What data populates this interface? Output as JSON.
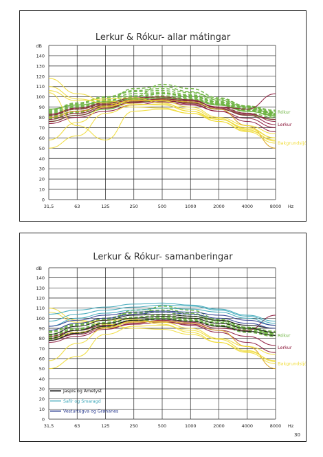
{
  "page": {
    "number": "30"
  },
  "colors": {
    "rokur": "#6cb33f",
    "lerkur": "#8b1538",
    "bakgrund": "#f0dc37",
    "bakgrund_line": "#d9a11c",
    "jaspis": "#111111",
    "safir": "#3aa6b9",
    "vestur": "#2a3b8f",
    "grid": "#222222"
  },
  "chart_data": [
    {
      "type": "line",
      "title": "Lerkur & Rókur- allar mátingar",
      "ylabel": "dB",
      "xlabel": "Hz",
      "categories": [
        "31,5",
        "63",
        "125",
        "250",
        "500",
        "1000",
        "2000",
        "4000",
        "8000"
      ],
      "yticks": [
        0,
        10,
        20,
        30,
        40,
        50,
        60,
        70,
        80,
        90,
        100,
        110,
        120,
        130,
        140
      ],
      "ylim": [
        0,
        150
      ],
      "grid": true,
      "series_labels": [
        {
          "text": "Rókur",
          "color": "rokur",
          "y": 85
        },
        {
          "text": "Lerkur",
          "color": "lerkur",
          "y": 73
        },
        {
          "text": "Bakgrundsljóð",
          "color": "bakgrund",
          "y": 55
        }
      ],
      "series": [
        {
          "group": "rokur",
          "style": "dash",
          "values": [
            82,
            88,
            93,
            98,
            100,
            98,
            93,
            88,
            84
          ]
        },
        {
          "group": "rokur",
          "style": "dash",
          "values": [
            80,
            86,
            91,
            97,
            99,
            97,
            92,
            86,
            82
          ]
        },
        {
          "group": "rokur",
          "style": "dash",
          "values": [
            84,
            90,
            96,
            101,
            103,
            100,
            95,
            89,
            85
          ]
        },
        {
          "group": "rokur",
          "style": "dash",
          "values": [
            78,
            84,
            90,
            95,
            97,
            95,
            90,
            84,
            80
          ]
        },
        {
          "group": "rokur",
          "style": "dash",
          "values": [
            86,
            93,
            99,
            105,
            106,
            102,
            96,
            90,
            86
          ]
        },
        {
          "group": "rokur",
          "style": "dash",
          "values": [
            83,
            89,
            95,
            108,
            110,
            105,
            97,
            90,
            85
          ]
        },
        {
          "group": "rokur",
          "style": "dash",
          "values": [
            81,
            88,
            94,
            100,
            112,
            108,
            99,
            91,
            83
          ]
        },
        {
          "group": "rokur",
          "style": "dash",
          "values": [
            85,
            91,
            97,
            103,
            104,
            101,
            94,
            87,
            81
          ]
        },
        {
          "group": "rokur",
          "style": "dash",
          "values": [
            79,
            85,
            92,
            98,
            101,
            99,
            93,
            87,
            83
          ]
        },
        {
          "group": "rokur",
          "style": "dash",
          "values": [
            87,
            94,
            100,
            106,
            108,
            104,
            98,
            91,
            87
          ]
        },
        {
          "group": "rokur",
          "style": "dash",
          "values": [
            82,
            88,
            94,
            99,
            103,
            101,
            95,
            88,
            84
          ]
        },
        {
          "group": "rokur",
          "style": "solid",
          "values": [
            76,
            82,
            88,
            95,
            96,
            94,
            88,
            82,
            78
          ]
        },
        {
          "group": "rokur",
          "style": "solid",
          "values": [
            88,
            92,
            95,
            98,
            99,
            97,
            92,
            86,
            82
          ]
        },
        {
          "group": "lerkur",
          "style": "solid",
          "values": [
            78,
            84,
            90,
            94,
            96,
            94,
            88,
            82,
            73
          ]
        },
        {
          "group": "lerkur",
          "style": "solid",
          "values": [
            80,
            86,
            92,
            96,
            98,
            96,
            90,
            84,
            76
          ]
        },
        {
          "group": "lerkur",
          "style": "solid",
          "values": [
            82,
            88,
            93,
            97,
            97,
            93,
            86,
            76,
            66
          ]
        },
        {
          "group": "lerkur",
          "style": "solid",
          "values": [
            74,
            80,
            86,
            92,
            95,
            92,
            86,
            79,
            70
          ]
        },
        {
          "group": "lerkur",
          "style": "solid",
          "values": [
            83,
            89,
            94,
            99,
            100,
            97,
            89,
            83,
            78
          ]
        },
        {
          "group": "lerkur",
          "style": "solid",
          "values": [
            76,
            82,
            89,
            95,
            98,
            96,
            90,
            88,
            103
          ]
        },
        {
          "group": "lerkur_dark",
          "style": "solid",
          "values": [
            80,
            86,
            91,
            96,
            97,
            95,
            88,
            72,
            50
          ]
        },
        {
          "group": "bakgrund",
          "style": "solid",
          "values": [
            118,
            103,
            96,
            93,
            92,
            86,
            78,
            70,
            60
          ]
        },
        {
          "group": "bakgrund",
          "style": "solid",
          "values": [
            110,
            98,
            94,
            90,
            89,
            84,
            76,
            67,
            58
          ]
        },
        {
          "group": "bakgrund",
          "style": "solid",
          "values": [
            58,
            75,
            90,
            97,
            96,
            90,
            80,
            72,
            64
          ]
        },
        {
          "group": "bakgrund",
          "style": "solid",
          "values": [
            50,
            62,
            84,
            92,
            93,
            88,
            79,
            68,
            57
          ]
        },
        {
          "group": "bakgrund",
          "style": "solid",
          "values": [
            104,
            72,
            58,
            86,
            88,
            84,
            78,
            69,
            60
          ]
        },
        {
          "group": "bakgrund",
          "style": "solid",
          "values": [
            106,
            96,
            98,
            99,
            94,
            86,
            76,
            66,
            55
          ]
        }
      ]
    },
    {
      "type": "line",
      "title": "Lerkur & Rókur- samanberingar",
      "ylabel": "dB",
      "xlabel": "Hz",
      "categories": [
        "31,5",
        "63",
        "125",
        "250",
        "500",
        "1000",
        "2000",
        "4000",
        "8000"
      ],
      "yticks": [
        0,
        10,
        20,
        30,
        40,
        50,
        60,
        70,
        80,
        90,
        100,
        110,
        120,
        130,
        140
      ],
      "ylim": [
        0,
        150
      ],
      "grid": true,
      "series_labels": [
        {
          "text": "Rókur",
          "color": "rokur",
          "y": 83
        },
        {
          "text": "Lerkur",
          "color": "lerkur",
          "y": 71
        },
        {
          "text": "Bakgrundsljóð",
          "color": "bakgrund",
          "y": 55
        }
      ],
      "legend": [
        {
          "text": "Jaspis og Ametyst",
          "color": "jaspis"
        },
        {
          "text": "Safír og Smaragd",
          "color": "safir"
        },
        {
          "text": "Vesturtúgva og Grønanes",
          "color": "vestur"
        }
      ],
      "series": [
        {
          "group": "rokur",
          "style": "dash",
          "values": [
            82,
            88,
            93,
            98,
            100,
            98,
            93,
            88,
            84
          ]
        },
        {
          "group": "rokur",
          "style": "dash",
          "values": [
            80,
            86,
            91,
            97,
            99,
            97,
            92,
            86,
            82
          ]
        },
        {
          "group": "rokur",
          "style": "dash",
          "values": [
            84,
            90,
            96,
            101,
            103,
            100,
            95,
            89,
            85
          ]
        },
        {
          "group": "rokur",
          "style": "dash",
          "values": [
            86,
            93,
            99,
            105,
            106,
            102,
            96,
            90,
            86
          ]
        },
        {
          "group": "rokur",
          "style": "dash",
          "values": [
            83,
            89,
            95,
            108,
            110,
            105,
            97,
            90,
            85
          ]
        },
        {
          "group": "rokur",
          "style": "dash",
          "values": [
            81,
            88,
            94,
            100,
            112,
            108,
            99,
            91,
            83
          ]
        },
        {
          "group": "rokur",
          "style": "dash",
          "values": [
            87,
            94,
            100,
            106,
            108,
            104,
            98,
            91,
            87
          ]
        },
        {
          "group": "rokur",
          "style": "dash",
          "values": [
            79,
            85,
            92,
            98,
            101,
            99,
            93,
            87,
            83
          ]
        },
        {
          "group": "lerkur",
          "style": "solid",
          "values": [
            78,
            84,
            90,
            94,
            96,
            94,
            88,
            82,
            73
          ]
        },
        {
          "group": "lerkur",
          "style": "solid",
          "values": [
            82,
            88,
            93,
            97,
            97,
            93,
            86,
            76,
            66
          ]
        },
        {
          "group": "lerkur",
          "style": "solid",
          "values": [
            76,
            82,
            89,
            95,
            98,
            96,
            90,
            88,
            103
          ]
        },
        {
          "group": "lerkur_dark",
          "style": "solid",
          "values": [
            80,
            86,
            91,
            96,
            97,
            95,
            88,
            72,
            50
          ]
        },
        {
          "group": "bakgrund",
          "style": "solid",
          "values": [
            110,
            98,
            94,
            90,
            89,
            84,
            76,
            67,
            58
          ]
        },
        {
          "group": "bakgrund",
          "style": "solid",
          "values": [
            58,
            75,
            90,
            97,
            96,
            90,
            80,
            72,
            64
          ]
        },
        {
          "group": "bakgrund",
          "style": "solid",
          "values": [
            50,
            62,
            84,
            92,
            93,
            88,
            79,
            68,
            57
          ]
        },
        {
          "group": "bakgrund",
          "style": "solid",
          "values": [
            106,
            96,
            98,
            99,
            94,
            86,
            76,
            66,
            55
          ]
        },
        {
          "group": "jaspis",
          "style": "solid",
          "values": [
            80,
            88,
            95,
            100,
            102,
            100,
            95,
            90,
            86
          ]
        },
        {
          "group": "jaspis",
          "style": "solid",
          "values": [
            84,
            92,
            98,
            103,
            104,
            102,
            98,
            93,
            90
          ]
        },
        {
          "group": "jaspis",
          "style": "solid",
          "values": [
            78,
            85,
            92,
            98,
            99,
            97,
            92,
            87,
            83
          ]
        },
        {
          "group": "safir",
          "style": "solid",
          "values": [
            104,
            108,
            111,
            114,
            115,
            113,
            109,
            103,
            97
          ]
        },
        {
          "group": "safir",
          "style": "solid",
          "values": [
            97,
            104,
            108,
            111,
            113,
            112,
            108,
            102,
            95
          ]
        },
        {
          "group": "safir",
          "style": "solid",
          "values": [
            92,
            100,
            105,
            108,
            110,
            109,
            106,
            100,
            93
          ]
        },
        {
          "group": "vestur",
          "style": "solid",
          "values": [
            88,
            95,
            100,
            104,
            106,
            104,
            100,
            95,
            90
          ]
        },
        {
          "group": "vestur",
          "style": "solid",
          "values": [
            92,
            98,
            103,
            106,
            107,
            106,
            103,
            98,
            93
          ]
        }
      ]
    }
  ]
}
